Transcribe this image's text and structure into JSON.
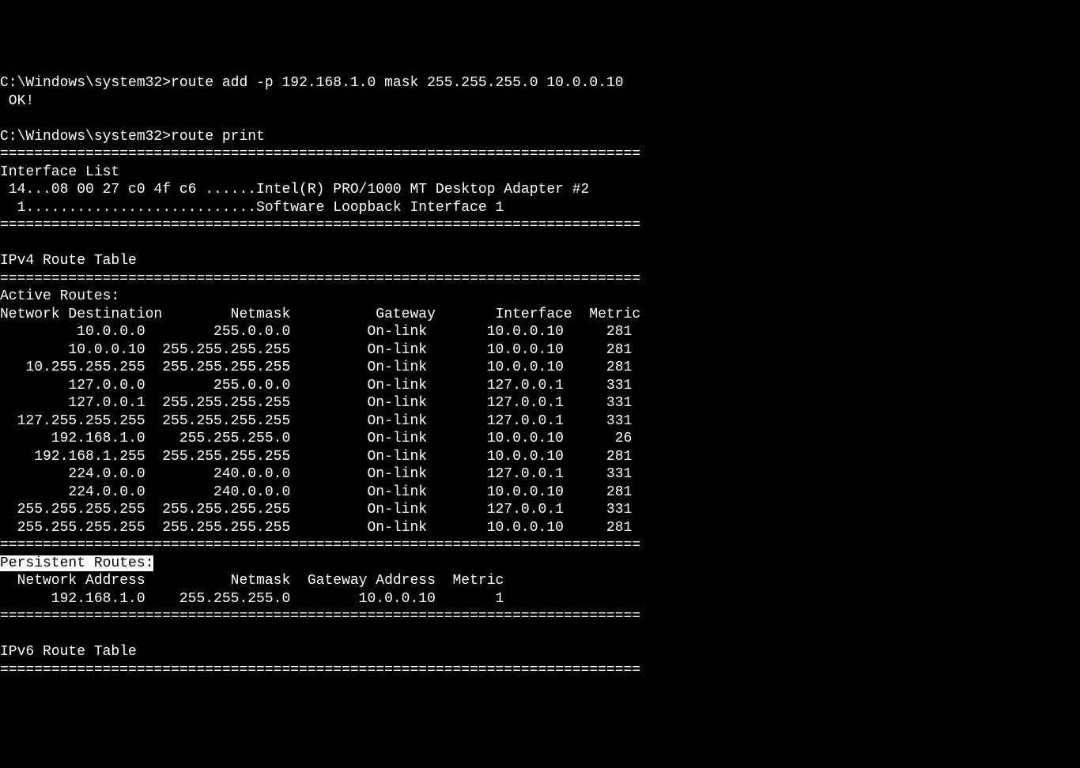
{
  "terminal": {
    "prompt1": "C:\\Windows\\system32>",
    "command1": "route add -p 192.168.1.0 mask 255.255.255.0 10.0.0.10",
    "result1": " OK!",
    "prompt2": "C:\\Windows\\system32>",
    "command2": "route print",
    "separator": "===========================================================================",
    "interfaceListTitle": "Interface List",
    "interface1": " 14...08 00 27 c0 4f c6 ......Intel(R) PRO/1000 MT Desktop Adapter #2",
    "interface2": "  1...........................Software Loopback Interface 1",
    "ipv4Title": "IPv4 Route Table",
    "activeRoutesTitle": "Active Routes:",
    "headers": {
      "dest": "Network Destination",
      "netmask": "Netmask",
      "gateway": "Gateway",
      "interface": "Interface",
      "metric": "Metric"
    },
    "routes": [
      {
        "dest": "10.0.0.0",
        "mask": "255.0.0.0",
        "gw": "On-link",
        "if": "10.0.0.10",
        "metric": "281"
      },
      {
        "dest": "10.0.0.10",
        "mask": "255.255.255.255",
        "gw": "On-link",
        "if": "10.0.0.10",
        "metric": "281"
      },
      {
        "dest": "10.255.255.255",
        "mask": "255.255.255.255",
        "gw": "On-link",
        "if": "10.0.0.10",
        "metric": "281"
      },
      {
        "dest": "127.0.0.0",
        "mask": "255.0.0.0",
        "gw": "On-link",
        "if": "127.0.0.1",
        "metric": "331"
      },
      {
        "dest": "127.0.0.1",
        "mask": "255.255.255.255",
        "gw": "On-link",
        "if": "127.0.0.1",
        "metric": "331"
      },
      {
        "dest": "127.255.255.255",
        "mask": "255.255.255.255",
        "gw": "On-link",
        "if": "127.0.0.1",
        "metric": "331"
      },
      {
        "dest": "192.168.1.0",
        "mask": "255.255.255.0",
        "gw": "On-link",
        "if": "10.0.0.10",
        "metric": "26"
      },
      {
        "dest": "192.168.1.255",
        "mask": "255.255.255.255",
        "gw": "On-link",
        "if": "10.0.0.10",
        "metric": "281"
      },
      {
        "dest": "224.0.0.0",
        "mask": "240.0.0.0",
        "gw": "On-link",
        "if": "127.0.0.1",
        "metric": "331"
      },
      {
        "dest": "224.0.0.0",
        "mask": "240.0.0.0",
        "gw": "On-link",
        "if": "10.0.0.10",
        "metric": "281"
      },
      {
        "dest": "255.255.255.255",
        "mask": "255.255.255.255",
        "gw": "On-link",
        "if": "127.0.0.1",
        "metric": "331"
      },
      {
        "dest": "255.255.255.255",
        "mask": "255.255.255.255",
        "gw": "On-link",
        "if": "10.0.0.10",
        "metric": "281"
      }
    ],
    "persistentTitle": "Persistent Routes:",
    "persistentHeaders": {
      "addr": "Network Address",
      "netmask": "Netmask",
      "gateway": "Gateway Address",
      "metric": "Metric"
    },
    "persistentRoutes": [
      {
        "addr": "192.168.1.0",
        "mask": "255.255.255.0",
        "gw": "10.0.0.10",
        "metric": "1"
      }
    ],
    "ipv6Title": "IPv6 Route Table",
    "colWidths": {
      "dest": 17,
      "mask": 17,
      "gw": 16,
      "if": 16,
      "metric": 7
    },
    "persistentColWidths": {
      "addr": 17,
      "mask": 17,
      "gw": 17,
      "metric": 7
    },
    "colors": {
      "background": "#000000",
      "text": "#ffffff"
    },
    "font": {
      "family": "Consolas",
      "size": 18
    }
  }
}
